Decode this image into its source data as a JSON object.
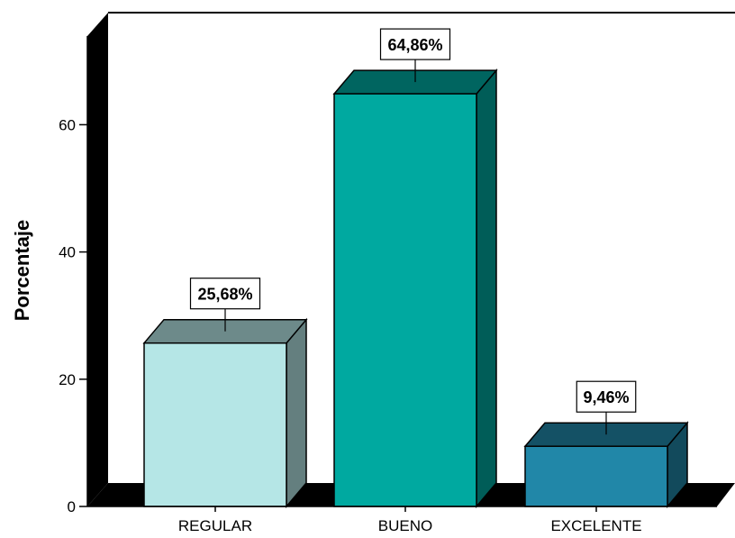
{
  "chart_data": {
    "type": "bar",
    "style": "3d",
    "categories": [
      "REGULAR",
      "BUENO",
      "EXCELENTE"
    ],
    "values": [
      25.68,
      64.86,
      9.46
    ],
    "data_labels": [
      "25,68%",
      "64,86%",
      "9,46%"
    ],
    "colors": [
      "#b5e6e6",
      "#00a9a0",
      "#2187a8"
    ],
    "ylabel": "Porcentaje",
    "xlabel": "",
    "title": "",
    "ylim": [
      0,
      70
    ],
    "y_ticks": [
      0,
      20,
      40,
      60
    ],
    "grid": false,
    "legend": "none"
  }
}
